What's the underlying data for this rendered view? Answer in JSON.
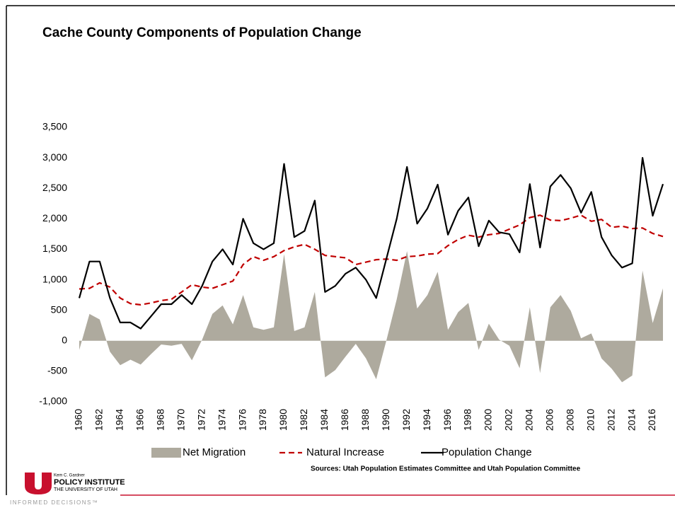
{
  "chart_data": {
    "type": "line",
    "title": "Cache County Components of Population Change",
    "annotation": "Sources: Utah Population Estimates Committee and Utah Population Committee",
    "x": [
      1960,
      1961,
      1962,
      1963,
      1964,
      1965,
      1966,
      1967,
      1968,
      1969,
      1970,
      1971,
      1972,
      1973,
      1974,
      1975,
      1976,
      1977,
      1978,
      1979,
      1980,
      1981,
      1982,
      1983,
      1984,
      1985,
      1986,
      1987,
      1988,
      1989,
      1990,
      1991,
      1992,
      1993,
      1994,
      1995,
      1996,
      1997,
      1998,
      1999,
      2000,
      2001,
      2002,
      2003,
      2004,
      2005,
      2006,
      2007,
      2008,
      2009,
      2010,
      2011,
      2012,
      2013,
      2014,
      2015,
      2016,
      2017
    ],
    "series": [
      {
        "name": "Net Migration",
        "color": "#aeaa9e",
        "style": "area",
        "values": [
          -150,
          440,
          350,
          -180,
          -400,
          -310,
          -390,
          -220,
          -60,
          -80,
          -50,
          -320,
          20,
          440,
          580,
          270,
          750,
          220,
          180,
          220,
          1420,
          160,
          220,
          800,
          -600,
          -480,
          -260,
          -50,
          -290,
          -630,
          10,
          680,
          1470,
          530,
          750,
          1130,
          180,
          470,
          620,
          -150,
          280,
          20,
          -80,
          -450,
          550,
          -530,
          550,
          750,
          490,
          40,
          120,
          -290,
          -460,
          -680,
          -570,
          1150,
          290,
          860
        ]
      },
      {
        "name": "Natural Increase",
        "color": "#c00000",
        "style": "dashed",
        "values": [
          850,
          860,
          950,
          880,
          700,
          610,
          590,
          620,
          660,
          680,
          800,
          920,
          880,
          860,
          920,
          980,
          1250,
          1380,
          1320,
          1380,
          1480,
          1540,
          1580,
          1500,
          1400,
          1380,
          1360,
          1250,
          1290,
          1330,
          1340,
          1320,
          1380,
          1390,
          1420,
          1430,
          1560,
          1660,
          1730,
          1700,
          1740,
          1760,
          1830,
          1900,
          2020,
          2060,
          1980,
          1970,
          2010,
          2060,
          1960,
          1990,
          1860,
          1880,
          1840,
          1850,
          1760,
          1710
        ]
      },
      {
        "name": "Population Change",
        "color": "#000000",
        "style": "solid",
        "values": [
          700,
          1300,
          1300,
          700,
          300,
          300,
          200,
          400,
          600,
          600,
          750,
          600,
          900,
          1300,
          1500,
          1250,
          2000,
          1600,
          1500,
          1600,
          2900,
          1700,
          1800,
          2300,
          800,
          900,
          1100,
          1200,
          1000,
          700,
          1350,
          2000,
          2850,
          1920,
          2170,
          2560,
          1740,
          2130,
          2350,
          1550,
          1970,
          1780,
          1750,
          1450,
          2570,
          1530,
          2530,
          2720,
          2500,
          2100,
          2440,
          1700,
          1400,
          1200,
          1270,
          3000,
          2050,
          2570
        ]
      }
    ],
    "xlim": [
      1960,
      2017
    ],
    "xticks": [
      1960,
      1962,
      1964,
      1966,
      1968,
      1970,
      1972,
      1974,
      1976,
      1978,
      1980,
      1982,
      1984,
      1986,
      1988,
      1990,
      1992,
      1994,
      1996,
      1998,
      2000,
      2002,
      2004,
      2006,
      2008,
      2010,
      2012,
      2014,
      2016
    ],
    "ylim": [
      -1000,
      3500
    ],
    "yticks": [
      {
        "value": -1000,
        "label": "-1,000"
      },
      {
        "value": -500,
        "label": "-500"
      },
      0,
      500,
      {
        "value": 1000,
        "label": "1,000"
      },
      {
        "value": 1500,
        "label": "1,500"
      },
      {
        "value": 2000,
        "label": "2,000"
      },
      {
        "value": 2500,
        "label": "2,500"
      },
      {
        "value": 3000,
        "label": "3,000"
      },
      {
        "value": 3500,
        "label": "3,500"
      }
    ],
    "legend": "bottom",
    "grid": false
  },
  "logo": {
    "small": "Kem C. Gardner",
    "name": "POLICY INSTITUTE",
    "university": "THE UNIVERSITY OF UTAH",
    "tagline": "INFORMED DECISIONS™"
  }
}
